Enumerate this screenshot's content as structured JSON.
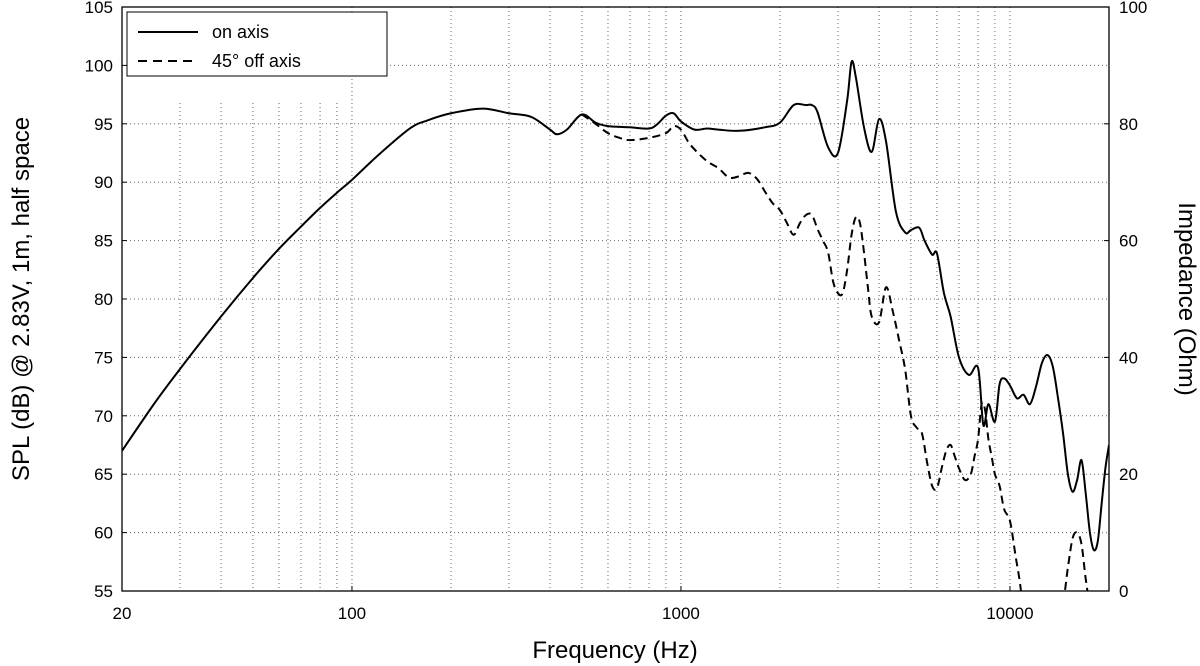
{
  "chart_data": {
    "type": "line",
    "xlabel": "Frequency (Hz)",
    "ylabel_left": "SPL (dB) @ 2.83V, 1m, half space",
    "ylabel_right": "Impedance (Ohm)",
    "x_scale": "log",
    "xlim": [
      20,
      20000
    ],
    "ylim": [
      55,
      105
    ],
    "ylim_right": [
      0,
      100
    ],
    "x_tick_labels": [
      "20",
      "100",
      "1000",
      "10000"
    ],
    "y_tick_labels": [
      "55",
      "60",
      "65",
      "70",
      "75",
      "80",
      "85",
      "90",
      "95",
      "100",
      "105"
    ],
    "y_right_tick_labels": [
      "0",
      "20",
      "40",
      "60",
      "80",
      "100"
    ],
    "grid": true,
    "legend_position": "top-left",
    "series": [
      {
        "name": "on axis",
        "style": "solid",
        "color": "#000000",
        "x": [
          20,
          25,
          30,
          40,
          50,
          60,
          70,
          80,
          90,
          100,
          120,
          150,
          170,
          200,
          250,
          300,
          350,
          400,
          420,
          450,
          500,
          550,
          600,
          700,
          800,
          850,
          900,
          950,
          1000,
          1100,
          1200,
          1300,
          1500,
          1800,
          2000,
          2200,
          2400,
          2500,
          2600,
          2800,
          3000,
          3200,
          3300,
          3400,
          3600,
          3800,
          4000,
          4200,
          4500,
          4800,
          5000,
          5300,
          5500,
          5800,
          6000,
          6300,
          6600,
          7000,
          7500,
          8000,
          8300,
          8600,
          9000,
          9300,
          9600,
          10000,
          10500,
          11000,
          11500,
          12000,
          12500,
          13000,
          13500,
          14000,
          14500,
          15000,
          15500,
          16000,
          16500,
          17000,
          17500,
          18000,
          18500,
          19000,
          19500,
          20000
        ],
        "y": [
          67,
          71,
          74,
          78.5,
          81.8,
          84.3,
          86.2,
          87.8,
          89.1,
          90.2,
          92.3,
          94.6,
          95.3,
          95.9,
          96.3,
          95.9,
          95.6,
          94.5,
          94.1,
          94.5,
          95.8,
          95.1,
          94.8,
          94.7,
          94.6,
          95,
          95.7,
          95.9,
          95.2,
          94.5,
          94.6,
          94.5,
          94.4,
          94.7,
          95.1,
          96.6,
          96.6,
          96.6,
          96,
          93,
          92.5,
          97,
          100.3,
          99,
          94.7,
          92.6,
          95.4,
          93.5,
          87.5,
          85.7,
          85.9,
          86.1,
          85,
          83.8,
          83.9,
          80.5,
          78.5,
          75,
          73.5,
          74.1,
          69.2,
          71,
          69.5,
          72.7,
          73.2,
          72.6,
          71.5,
          71.8,
          71,
          72.5,
          74.5,
          75.2,
          74.2,
          71.5,
          68.5,
          65,
          63.5,
          64.5,
          66.2,
          63.3,
          60,
          58.5,
          59.3,
          62.5,
          65.5,
          67.5
        ]
      },
      {
        "name": "45° off axis",
        "style": "dashed",
        "color": "#000000",
        "x": [
          500,
          550,
          600,
          650,
          700,
          800,
          900,
          950,
          1000,
          1050,
          1100,
          1200,
          1300,
          1400,
          1500,
          1600,
          1700,
          1800,
          1900,
          2000,
          2100,
          2200,
          2300,
          2400,
          2500,
          2600,
          2700,
          2800,
          2900,
          3000,
          3100,
          3200,
          3300,
          3400,
          3500,
          3600,
          3700,
          3800,
          4000,
          4200,
          4400,
          4600,
          4800,
          5000,
          5200,
          5400,
          5600,
          5800,
          6000,
          6200,
          6400,
          6600,
          6800,
          7000,
          7300,
          7600,
          7800,
          8000,
          8200,
          8400,
          8600,
          8800,
          9000,
          9300,
          9600,
          10000,
          10400,
          10800,
          11200,
          11600,
          12000,
          13000,
          14000,
          14500,
          15000,
          15500,
          16000,
          16500,
          17000,
          17500,
          18000
        ],
        "y": [
          95.8,
          95,
          94.2,
          93.8,
          93.6,
          93.8,
          94.2,
          94.8,
          94.5,
          93.5,
          92.8,
          91.8,
          91.2,
          90.4,
          90.5,
          90.8,
          90.3,
          89.2,
          88.2,
          87.6,
          86.5,
          85.5,
          86.5,
          87.2,
          87.2,
          86,
          85,
          84,
          81.5,
          80.5,
          80.5,
          82.5,
          85.5,
          87,
          86.5,
          84,
          81,
          78.5,
          78,
          81,
          79,
          76.5,
          74,
          70,
          69,
          68.5,
          66,
          64,
          63.8,
          65.5,
          67,
          67.5,
          66.5,
          65.5,
          64.5,
          65,
          66.5,
          68,
          71,
          70.5,
          68,
          66.5,
          65,
          64,
          62,
          61,
          58,
          55,
          50,
          48,
          49,
          52,
          53.5,
          54,
          57,
          59.5,
          60,
          59,
          56,
          54,
          55
        ]
      }
    ]
  }
}
